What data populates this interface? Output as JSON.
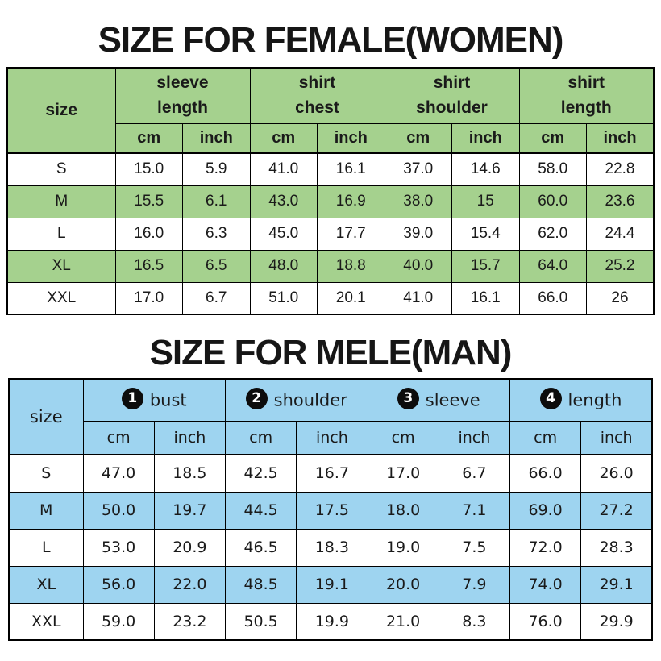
{
  "colors": {
    "female_accent": "#a5d18e",
    "male_accent": "#9ed4f0",
    "border": "#000000",
    "text": "#1a1a1a"
  },
  "female_table": {
    "title": "SIZE FOR FEMALE(WOMEN)",
    "size_label": "size",
    "unit_labels": [
      "cm",
      "inch"
    ],
    "groups": [
      "sleeve\nlength",
      "shirt\nchest",
      "shirt\nshoulder",
      "shirt\nlength"
    ],
    "rows": [
      {
        "size": "S",
        "values": [
          "15.0",
          "5.9",
          "41.0",
          "16.1",
          "37.0",
          "14.6",
          "58.0",
          "22.8"
        ]
      },
      {
        "size": "M",
        "values": [
          "15.5",
          "6.1",
          "43.0",
          "16.9",
          "38.0",
          "15",
          "60.0",
          "23.6"
        ]
      },
      {
        "size": "L",
        "values": [
          "16.0",
          "6.3",
          "45.0",
          "17.7",
          "39.0",
          "15.4",
          "62.0",
          "24.4"
        ]
      },
      {
        "size": "XL",
        "values": [
          "16.5",
          "6.5",
          "48.0",
          "18.8",
          "40.0",
          "15.7",
          "64.0",
          "25.2"
        ]
      },
      {
        "size": "XXL",
        "values": [
          "17.0",
          "6.7",
          "51.0",
          "20.1",
          "41.0",
          "16.1",
          "66.0",
          "26"
        ]
      }
    ]
  },
  "male_table": {
    "title": "SIZE FOR MELE(MAN)",
    "size_label": "size",
    "unit_labels": [
      "cm",
      "inch"
    ],
    "groups": [
      {
        "number": "1",
        "label": "bust"
      },
      {
        "number": "2",
        "label": "shoulder"
      },
      {
        "number": "3",
        "label": "sleeve"
      },
      {
        "number": "4",
        "label": "length"
      }
    ],
    "rows": [
      {
        "size": "S",
        "values": [
          "47.0",
          "18.5",
          "42.5",
          "16.7",
          "17.0",
          "6.7",
          "66.0",
          "26.0"
        ]
      },
      {
        "size": "M",
        "values": [
          "50.0",
          "19.7",
          "44.5",
          "17.5",
          "18.0",
          "7.1",
          "69.0",
          "27.2"
        ]
      },
      {
        "size": "L",
        "values": [
          "53.0",
          "20.9",
          "46.5",
          "18.3",
          "19.0",
          "7.5",
          "72.0",
          "28.3"
        ]
      },
      {
        "size": "XL",
        "values": [
          "56.0",
          "22.0",
          "48.5",
          "19.1",
          "20.0",
          "7.9",
          "74.0",
          "29.1"
        ]
      },
      {
        "size": "XXL",
        "values": [
          "59.0",
          "23.2",
          "50.5",
          "19.9",
          "21.0",
          "8.3",
          "76.0",
          "29.9"
        ]
      }
    ]
  },
  "chart_data": [
    {
      "type": "table",
      "title": "SIZE FOR FEMALE(WOMEN)",
      "columns": [
        "size",
        "sleeve length cm",
        "sleeve length inch",
        "shirt chest cm",
        "shirt chest inch",
        "shirt shoulder cm",
        "shirt shoulder inch",
        "shirt length cm",
        "shirt length inch"
      ],
      "rows": [
        [
          "S",
          15.0,
          5.9,
          41.0,
          16.1,
          37.0,
          14.6,
          58.0,
          22.8
        ],
        [
          "M",
          15.5,
          6.1,
          43.0,
          16.9,
          38.0,
          15,
          60.0,
          23.6
        ],
        [
          "L",
          16.0,
          6.3,
          45.0,
          17.7,
          39.0,
          15.4,
          62.0,
          24.4
        ],
        [
          "XL",
          16.5,
          6.5,
          48.0,
          18.8,
          40.0,
          15.7,
          64.0,
          25.2
        ],
        [
          "XXL",
          17.0,
          6.7,
          51.0,
          20.1,
          41.0,
          16.1,
          66.0,
          26
        ]
      ],
      "layout_hints": {
        "accent_color": "#a5d18e",
        "alternating_rows": [
          "M",
          "XL"
        ]
      }
    },
    {
      "type": "table",
      "title": "SIZE FOR MELE(MAN)",
      "columns": [
        "size",
        "bust cm",
        "bust inch",
        "shoulder cm",
        "shoulder inch",
        "sleeve cm",
        "sleeve inch",
        "length cm",
        "length inch"
      ],
      "rows": [
        [
          "S",
          47.0,
          18.5,
          42.5,
          16.7,
          17.0,
          6.7,
          66.0,
          26.0
        ],
        [
          "M",
          50.0,
          19.7,
          44.5,
          17.5,
          18.0,
          7.1,
          69.0,
          27.2
        ],
        [
          "L",
          53.0,
          20.9,
          46.5,
          18.3,
          19.0,
          7.5,
          72.0,
          28.3
        ],
        [
          "XL",
          56.0,
          22.0,
          48.5,
          19.1,
          20.0,
          7.9,
          74.0,
          29.1
        ],
        [
          "XXL",
          59.0,
          23.2,
          50.5,
          19.9,
          21.0,
          8.3,
          76.0,
          29.9
        ]
      ],
      "layout_hints": {
        "accent_color": "#9ed4f0",
        "alternating_rows": [
          "M",
          "XL"
        ],
        "group_markers": [
          "1",
          "2",
          "3",
          "4"
        ]
      }
    }
  ]
}
